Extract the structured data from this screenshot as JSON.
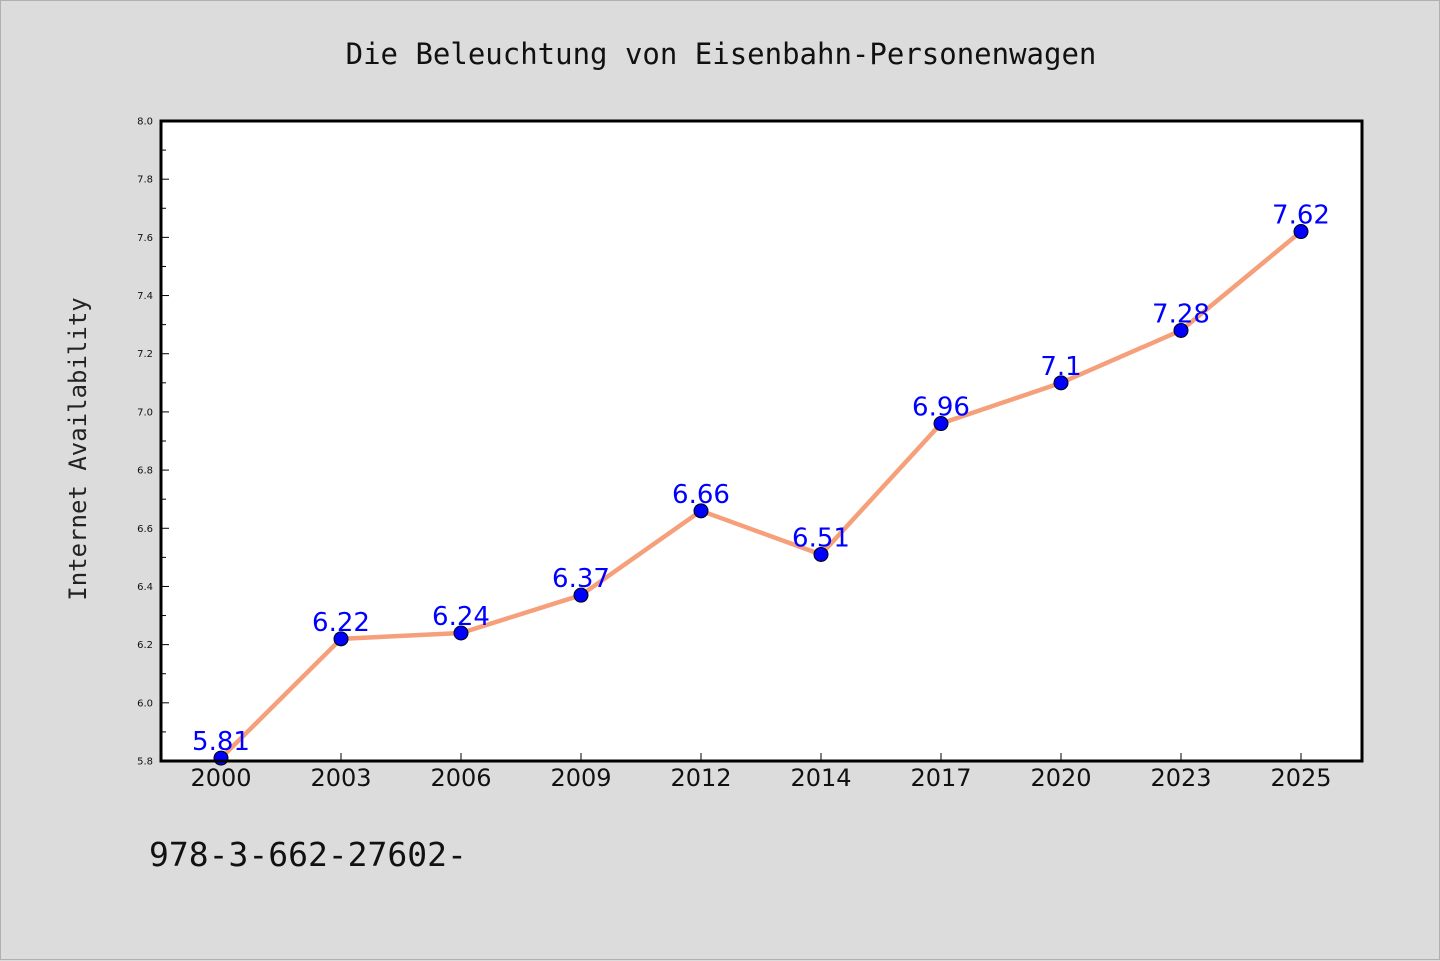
{
  "chart_data": {
    "type": "line",
    "title": "Die Beleuchtung von Eisenbahn-Personenwagen",
    "xlabel": "",
    "ylabel": "Internet Availability",
    "categories": [
      "2000",
      "2003",
      "2006",
      "2009",
      "2012",
      "2014",
      "2017",
      "2020",
      "2023",
      "2025"
    ],
    "series": [
      {
        "values": [
          5.81,
          6.22,
          6.24,
          6.37,
          6.66,
          6.51,
          6.96,
          7.1,
          7.28,
          7.62
        ],
        "data_labels": [
          "5.81",
          "6.22",
          "6.24",
          "6.37",
          "6.66",
          "6.51",
          "6.96",
          "7.1",
          "7.28",
          "7.62"
        ],
        "line_color": "#f5a07a",
        "marker_color": "#0000ff"
      }
    ],
    "ylim": [
      5.8,
      8.0
    ],
    "yticks": [
      "5.8",
      "6.0",
      "6.2",
      "6.4",
      "6.6",
      "6.8",
      "7.0",
      "7.2",
      "7.4",
      "7.6",
      "7.8",
      "8.0"
    ],
    "grid": false,
    "legend": "none",
    "label_color": "#0000ff"
  },
  "footer": {
    "text": "978-3-662-27602-"
  }
}
